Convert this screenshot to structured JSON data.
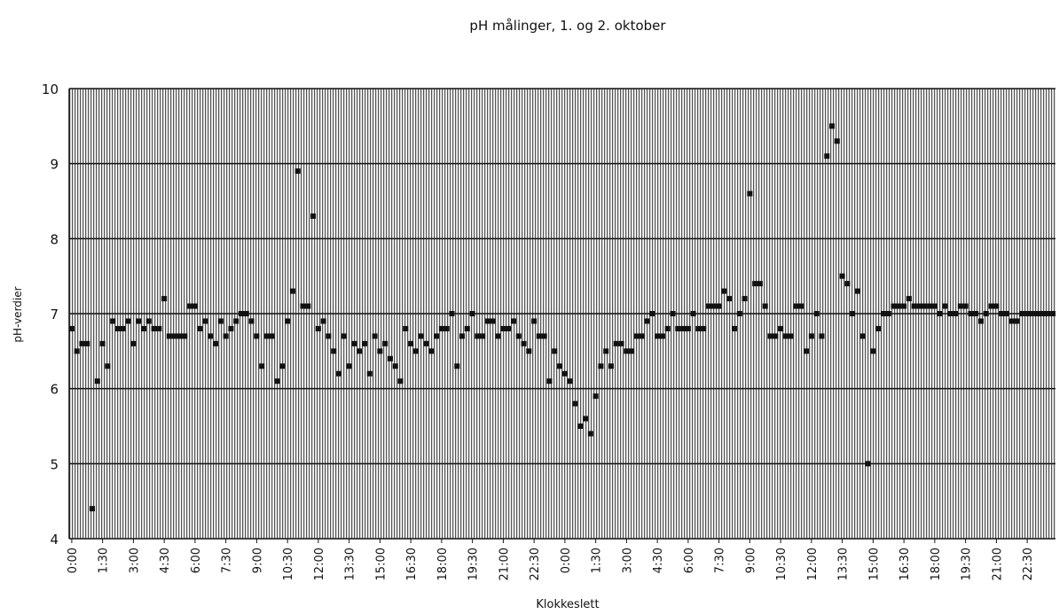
{
  "chart_data": {
    "type": "scatter",
    "title": "pH målinger, 1. og 2. oktober",
    "x_label": "Klokkeslett",
    "y_label": "pH-verdier",
    "color": "#111111",
    "grid": true,
    "ylim": [
      4,
      10
    ],
    "yticks": [
      4,
      5,
      6,
      7,
      8,
      9,
      10
    ],
    "categories": [
      "0:00",
      null,
      null,
      null,
      null,
      null,
      "1:30",
      null,
      null,
      null,
      null,
      null,
      "3:00",
      null,
      null,
      null,
      null,
      null,
      "4:30",
      null,
      null,
      null,
      null,
      null,
      "6:00",
      null,
      null,
      null,
      null,
      null,
      "7:30",
      null,
      null,
      null,
      null,
      null,
      "9:00",
      null,
      null,
      null,
      null,
      null,
      "10:30",
      null,
      null,
      null,
      null,
      null,
      "12:00",
      null,
      null,
      null,
      null,
      null,
      "13:30",
      null,
      null,
      null,
      null,
      null,
      "15:00",
      null,
      null,
      null,
      null,
      null,
      "16:30",
      null,
      null,
      null,
      null,
      null,
      "18:00",
      null,
      null,
      null,
      null,
      null,
      "19:30",
      null,
      null,
      null,
      null,
      null,
      "21:00",
      null,
      null,
      null,
      null,
      null,
      "22:30",
      null,
      null,
      null,
      null,
      null,
      "0:00",
      null,
      null,
      null,
      null,
      null,
      "1:30",
      null,
      null,
      null,
      null,
      null,
      "3:00",
      null,
      null,
      null,
      null,
      null,
      "4:30",
      null,
      null,
      null,
      null,
      null,
      "6:00",
      null,
      null,
      null,
      null,
      null,
      "7:30",
      null,
      null,
      null,
      null,
      null,
      "9:00",
      null,
      null,
      null,
      null,
      null,
      "10:30",
      null,
      null,
      null,
      null,
      null,
      "12:00",
      null,
      null,
      null,
      null,
      null,
      "13:30",
      null,
      null,
      null,
      null,
      null,
      "15:00",
      null,
      null,
      null,
      null,
      null,
      "16:30",
      null,
      null,
      null,
      null,
      null,
      "18:00",
      null,
      null,
      null,
      null,
      null,
      "19:30",
      null,
      null,
      null,
      null,
      null,
      "21:00",
      null,
      null,
      null,
      null,
      null,
      "22:30",
      null,
      null,
      null,
      null,
      null
    ],
    "values": [
      6.8,
      6.5,
      6.6,
      6.6,
      4.4,
      6.1,
      6.6,
      6.3,
      6.9,
      6.8,
      6.8,
      6.9,
      6.6,
      6.9,
      6.8,
      6.9,
      6.8,
      6.8,
      7.2,
      6.7,
      6.7,
      6.7,
      6.7,
      7.1,
      7.1,
      6.8,
      6.9,
      6.7,
      6.6,
      6.9,
      6.7,
      6.8,
      6.9,
      7.0,
      7.0,
      6.9,
      6.7,
      6.3,
      6.7,
      6.7,
      6.1,
      6.3,
      6.9,
      7.3,
      8.9,
      7.1,
      7.1,
      8.3,
      6.8,
      6.9,
      6.7,
      6.5,
      6.2,
      6.7,
      6.3,
      6.6,
      6.5,
      6.6,
      6.2,
      6.7,
      6.5,
      6.6,
      6.4,
      6.3,
      6.1,
      6.8,
      6.6,
      6.5,
      6.7,
      6.6,
      6.5,
      6.7,
      6.8,
      6.8,
      7.0,
      6.3,
      6.7,
      6.8,
      7.0,
      6.7,
      6.7,
      6.9,
      6.9,
      6.7,
      6.8,
      6.8,
      6.9,
      6.7,
      6.6,
      6.5,
      6.9,
      6.7,
      6.7,
      6.1,
      6.5,
      6.3,
      6.2,
      6.1,
      5.8,
      5.5,
      5.6,
      5.4,
      5.9,
      6.3,
      6.5,
      6.3,
      6.6,
      6.6,
      6.5,
      6.5,
      6.7,
      6.7,
      6.9,
      7.0,
      6.7,
      6.7,
      6.8,
      7.0,
      6.8,
      6.8,
      6.8,
      7.0,
      6.8,
      6.8,
      7.1,
      7.1,
      7.1,
      7.3,
      7.2,
      6.8,
      7.0,
      7.2,
      8.6,
      7.4,
      7.4,
      7.1,
      6.7,
      6.7,
      6.8,
      6.7,
      6.7,
      7.1,
      7.1,
      6.5,
      6.7,
      7.0,
      6.7,
      9.1,
      9.5,
      9.3,
      7.5,
      7.4,
      7.0,
      7.3,
      6.7,
      5.0,
      6.5,
      6.8,
      7.0,
      7.0,
      7.1,
      7.1,
      7.1,
      7.2,
      7.1,
      7.1,
      7.1,
      7.1,
      7.1,
      7.0,
      7.1,
      7.0,
      7.0,
      7.1,
      7.1,
      7.0,
      7.0,
      6.9,
      7.0,
      7.1,
      7.1,
      7.0,
      7.0,
      6.9,
      6.9,
      7.0,
      7.0,
      7.0,
      7.0,
      7.0,
      7.0,
      7.0
    ]
  }
}
